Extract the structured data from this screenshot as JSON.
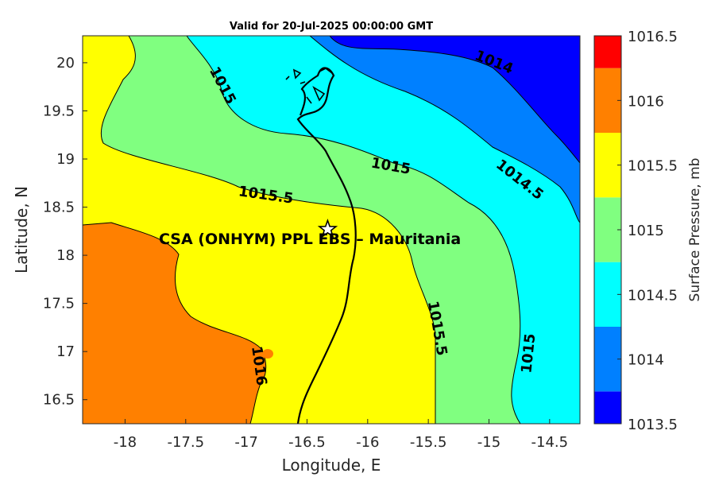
{
  "chart_data": {
    "type": "contour",
    "title": "Valid for 20-Jul-2025 00:00:00 GMT",
    "xlabel": "Longitude, E",
    "ylabel": "Latitude, N",
    "xlim": [
      -18.35,
      -14.25
    ],
    "ylim": [
      16.25,
      20.28
    ],
    "xticks": [
      -18,
      -17.5,
      -17,
      -16.5,
      -16,
      -15.5,
      -15,
      -14.5
    ],
    "xtick_labels": [
      "-18",
      "-17.5",
      "-17",
      "-16.5",
      "-16",
      "-15.5",
      "-15",
      "-14.5"
    ],
    "yticks": [
      16.5,
      17,
      17.5,
      18,
      18.5,
      19,
      19.5,
      20
    ],
    "ytick_labels": [
      "16.5",
      "17",
      "17.5",
      "18",
      "18.5",
      "19",
      "19.5",
      "20"
    ],
    "colorbar": {
      "label": "Surface Pressure, mb",
      "levels": [
        1013.5,
        1014,
        1014.5,
        1015,
        1015.5,
        1016,
        1016.5
      ],
      "tick_labels": [
        "1013.5",
        "1014",
        "1014.5",
        "1015",
        "1015.5",
        "1016",
        "1016.5"
      ],
      "colors": [
        "#0000ff",
        "#0080ff",
        "#00ffff",
        "#80ff80",
        "#ffff00",
        "#ff8000",
        "#ff0000"
      ]
    },
    "contour_labels": [
      {
        "text": "1014",
        "lon": -14.96,
        "lat": 20.0,
        "angle": 22
      },
      {
        "text": "1014.5",
        "lon": -14.75,
        "lat": 18.78,
        "angle": 38
      },
      {
        "text": "1015",
        "lon": -17.2,
        "lat": 19.76,
        "angle": 62
      },
      {
        "text": "1015",
        "lon": -15.81,
        "lat": 18.92,
        "angle": 10
      },
      {
        "text": "1015",
        "lon": -14.67,
        "lat": 16.98,
        "angle": -84
      },
      {
        "text": "1015.5",
        "lon": -16.84,
        "lat": 18.62,
        "angle": 8
      },
      {
        "text": "1015.5",
        "lon": -15.43,
        "lat": 17.24,
        "angle": 80
      },
      {
        "text": "1016",
        "lon": -16.9,
        "lat": 16.85,
        "angle": 82
      }
    ],
    "site": {
      "name": "CSA (ONHYM) PPL EBS  – Mauritania",
      "lon": -16.33,
      "lat": 18.27,
      "marker": "star"
    },
    "grid": false
  }
}
